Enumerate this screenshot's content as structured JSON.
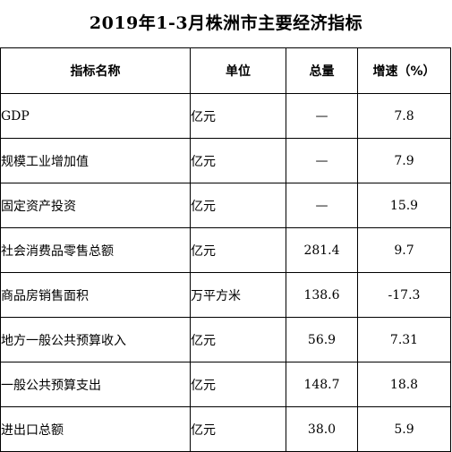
{
  "title": "2019年1-3月株洲市主要经济指标",
  "table": {
    "headers": {
      "name": "指标名称",
      "unit": "单位",
      "total": "总量",
      "growth": "增速（%）"
    },
    "rows": [
      {
        "name": "GDP",
        "unit": "亿元",
        "total": "—",
        "growth": "7.8"
      },
      {
        "name": "规模工业增加值",
        "unit": "亿元",
        "total": "—",
        "growth": "7.9"
      },
      {
        "name": "固定资产投资",
        "unit": "亿元",
        "total": "—",
        "growth": "15.9"
      },
      {
        "name": "社会消费品零售总额",
        "unit": "亿元",
        "total": "281.4",
        "growth": "9.7"
      },
      {
        "name": "商品房销售面积",
        "unit": "万平方米",
        "total": "138.6",
        "growth": "-17.3"
      },
      {
        "name": "地方一般公共预算收入",
        "unit": "亿元",
        "total": "56.9",
        "growth": "7.31"
      },
      {
        "name": "一般公共预算支出",
        "unit": "亿元",
        "total": "148.7",
        "growth": "18.8"
      },
      {
        "name": "进出口总额",
        "unit": "亿元",
        "total": "38.0",
        "growth": "5.9"
      }
    ]
  }
}
